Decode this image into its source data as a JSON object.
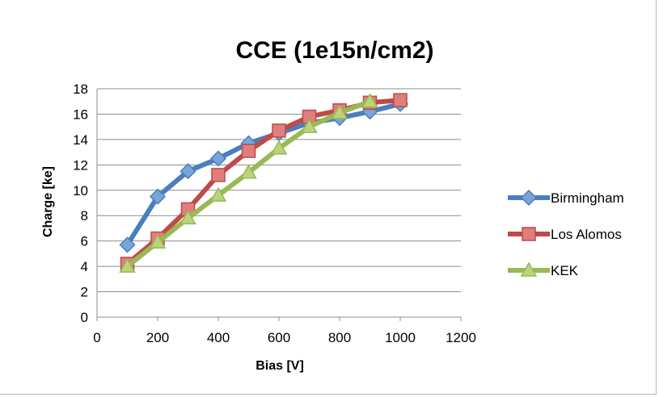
{
  "chart_data": {
    "type": "line",
    "title": "CCE (1e15n/cm2)",
    "xlabel": "Bias [V]",
    "ylabel": "Charge [ke]",
    "xlim": [
      0,
      1200
    ],
    "ylim": [
      0,
      18
    ],
    "xticks": [
      0,
      200,
      400,
      600,
      800,
      1000,
      1200
    ],
    "yticks": [
      0,
      2,
      4,
      6,
      8,
      10,
      12,
      14,
      16,
      18
    ],
    "grid": "horizontal",
    "legend_position": "right",
    "series": [
      {
        "name": "Birmingham",
        "color": "#4a7ebf",
        "marker_fill": "#7aa3d8",
        "marker": "diamond",
        "x": [
          100,
          200,
          300,
          400,
          500,
          600,
          700,
          800,
          900,
          1000
        ],
        "y": [
          5.7,
          9.5,
          11.5,
          12.5,
          13.7,
          14.5,
          15.3,
          15.7,
          16.2,
          16.8
        ]
      },
      {
        "name": "Los Alomos",
        "color": "#be4b48",
        "marker_fill": "#e07e7c",
        "marker": "square",
        "x": [
          100,
          200,
          300,
          400,
          500,
          600,
          700,
          800,
          900,
          1000
        ],
        "y": [
          4.2,
          6.2,
          8.5,
          11.2,
          13.1,
          14.7,
          15.8,
          16.3,
          16.9,
          17.1
        ]
      },
      {
        "name": "KEK",
        "color": "#98b954",
        "marker_fill": "#b9d47c",
        "marker": "triangle",
        "x": [
          100,
          200,
          300,
          400,
          500,
          600,
          700,
          800,
          900
        ],
        "y": [
          4.0,
          5.9,
          7.8,
          9.6,
          11.4,
          13.3,
          15.0,
          16.1,
          17.0
        ]
      }
    ]
  }
}
